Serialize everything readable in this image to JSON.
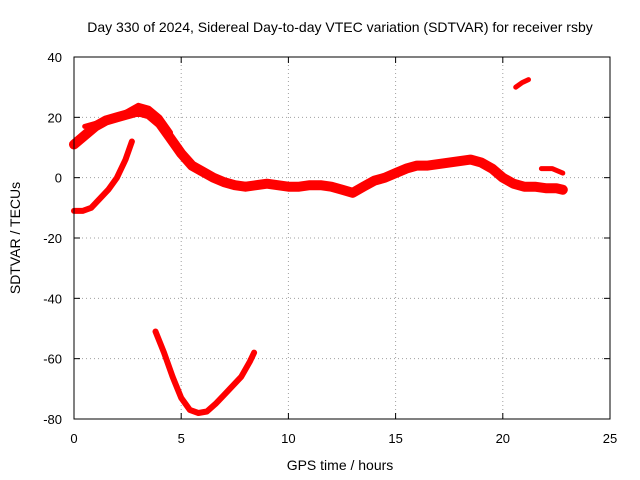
{
  "chart_data": {
    "type": "line",
    "title": "Day 330 of 2024, Sidereal Day-to-day VTEC variation (SDTVAR) for receiver rsby",
    "xlabel": "GPS time / hours",
    "ylabel": "SDTVAR / TECUs",
    "xlim": [
      0,
      25
    ],
    "ylim": [
      -80,
      40
    ],
    "xticks": [
      0,
      5,
      10,
      15,
      20,
      25
    ],
    "yticks": [
      -80,
      -60,
      -40,
      -20,
      0,
      20,
      40
    ],
    "xtick_labels": [
      "0",
      "5",
      "10",
      "15",
      "20",
      "25"
    ],
    "ytick_labels": [
      "-80",
      "-60",
      "-40",
      "-20",
      "0",
      "20",
      "40"
    ],
    "grid": true,
    "series_color": "#ff0000",
    "series": [
      {
        "name": "main-band",
        "width": 10,
        "x": [
          0,
          0.5,
          1,
          1.5,
          2,
          2.5,
          3,
          3.5,
          4,
          4.5,
          5,
          5.5,
          6,
          6.5,
          7,
          7.5,
          8,
          8.5,
          9,
          9.5,
          10,
          10.5,
          11,
          11.5,
          12,
          12.5,
          13,
          13.5,
          14,
          14.5,
          15,
          15.5,
          16,
          16.5,
          17,
          17.5,
          18,
          18.5,
          19,
          19.5,
          20,
          20.5,
          21,
          21.5,
          22,
          22.5,
          22.8
        ],
        "y": [
          11,
          14,
          17,
          19,
          20,
          21,
          22,
          21,
          18,
          13,
          8,
          4,
          2,
          0,
          -1.5,
          -2.5,
          -3,
          -2.5,
          -2,
          -2.5,
          -3,
          -3,
          -2.5,
          -2.5,
          -3,
          -4,
          -5,
          -3,
          -1,
          0,
          1.5,
          3,
          4,
          4,
          4.5,
          5,
          5.5,
          6,
          5,
          3,
          0,
          -2,
          -3,
          -3,
          -3.5,
          -3.5,
          -4
        ]
      },
      {
        "name": "upper-ridge",
        "width": 5,
        "x": [
          0.5,
          1,
          1.5,
          2,
          2.5,
          3,
          3.5,
          4,
          4.5
        ],
        "y": [
          17,
          18,
          19,
          20,
          22,
          24,
          23,
          20,
          15
        ]
      },
      {
        "name": "lower-arc-early",
        "width": 6,
        "x": [
          0,
          0.4,
          0.8,
          1.2,
          1.6,
          2,
          2.4,
          2.7
        ],
        "y": [
          -11,
          -11,
          -10,
          -7,
          -4,
          0,
          6,
          12
        ]
      },
      {
        "name": "deep-dip",
        "width": 6,
        "x": [
          3.8,
          4.2,
          4.6,
          5,
          5.4,
          5.8,
          6.2,
          6.6,
          7,
          7.4,
          7.8,
          8.2,
          8.4
        ],
        "y": [
          -51,
          -58,
          -66,
          -73,
          -77,
          -78,
          -77.5,
          -75,
          -72,
          -69,
          -66,
          -61,
          -58
        ]
      },
      {
        "name": "upper-segment-21h",
        "width": 5,
        "x": [
          20.6,
          20.9,
          21.2
        ],
        "y": [
          30,
          31.5,
          32.5
        ]
      },
      {
        "name": "late-segment-22h",
        "width": 5,
        "x": [
          21.8,
          22.3,
          22.8
        ],
        "y": [
          3,
          3,
          1.5
        ]
      }
    ]
  }
}
